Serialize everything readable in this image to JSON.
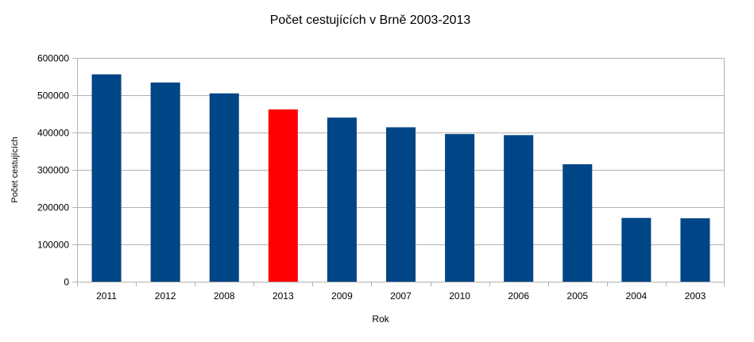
{
  "chart_data": {
    "type": "bar",
    "title": "Počet cestujících v Brně 2003-2013",
    "xlabel": "Rok",
    "ylabel": "Počet cestujících",
    "categories": [
      "2011",
      "2012",
      "2008",
      "2013",
      "2009",
      "2007",
      "2010",
      "2006",
      "2005",
      "2004",
      "2003"
    ],
    "series": [
      {
        "values": [
          556000,
          534000,
          505000,
          462000,
          440000,
          414000,
          396000,
          393000,
          315000,
          171000,
          170000
        ]
      }
    ],
    "highlight_category": "2013",
    "ylim": [
      0,
      600000
    ],
    "yticks": [
      "0",
      "100000",
      "200000",
      "300000",
      "400000",
      "500000",
      "600000"
    ],
    "grid": "horizontal",
    "legend": "none",
    "colors": {
      "bar": "#004586",
      "highlight": "#ff0000",
      "grid": "#b3b3b3",
      "axis": "#b3b3b3"
    }
  }
}
